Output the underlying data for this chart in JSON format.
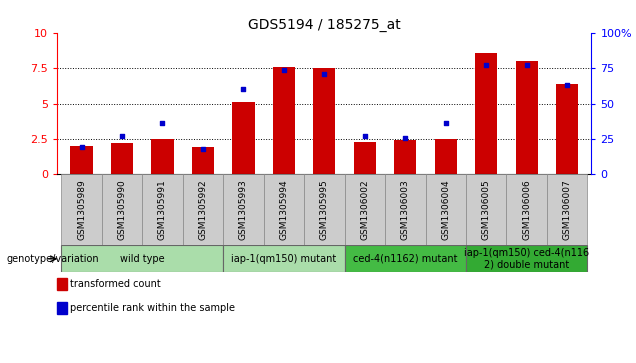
{
  "title": "GDS5194 / 185275_at",
  "samples": [
    "GSM1305989",
    "GSM1305990",
    "GSM1305991",
    "GSM1305992",
    "GSM1305993",
    "GSM1305994",
    "GSM1305995",
    "GSM1306002",
    "GSM1306003",
    "GSM1306004",
    "GSM1306005",
    "GSM1306006",
    "GSM1306007"
  ],
  "transformed_count": [
    2.0,
    2.2,
    2.5,
    1.9,
    5.1,
    7.6,
    7.5,
    2.3,
    2.4,
    2.5,
    8.6,
    8.0,
    6.4
  ],
  "percentile_rank": [
    19,
    27,
    36,
    18,
    60,
    74,
    71,
    27,
    26,
    36,
    77,
    77,
    63
  ],
  "ylim_left": [
    0,
    10
  ],
  "ylim_right": [
    0,
    100
  ],
  "yticks_left": [
    0,
    2.5,
    5.0,
    7.5,
    10
  ],
  "yticks_right": [
    0,
    25,
    50,
    75,
    100
  ],
  "ytick_labels_left": [
    "0",
    "2.5",
    "5",
    "7.5",
    "10"
  ],
  "ytick_labels_right": [
    "0",
    "25",
    "50",
    "75",
    "100%"
  ],
  "bar_color": "#cc0000",
  "dot_color": "#0000cc",
  "plot_bg_color": "#ffffff",
  "gray_cell_color": "#cccccc",
  "groups": [
    {
      "label": "wild type",
      "indices": [
        0,
        1,
        2,
        3
      ],
      "color": "#aaddaa"
    },
    {
      "label": "iap-1(qm150) mutant",
      "indices": [
        4,
        5,
        6
      ],
      "color": "#aaddaa"
    },
    {
      "label": "ced-4(n1162) mutant",
      "indices": [
        7,
        8,
        9
      ],
      "color": "#44bb44"
    },
    {
      "label": "iap-1(qm150) ced-4(n116\n2) double mutant",
      "indices": [
        10,
        11,
        12
      ],
      "color": "#33aa33"
    }
  ],
  "legend_items": [
    {
      "label": "transformed count",
      "color": "#cc0000"
    },
    {
      "label": "percentile rank within the sample",
      "color": "#0000cc"
    }
  ],
  "title_fontsize": 10,
  "tick_fontsize": 7,
  "sample_fontsize": 6.5,
  "group_fontsize": 7,
  "legend_fontsize": 7,
  "genotype_label": "genotype/variation"
}
